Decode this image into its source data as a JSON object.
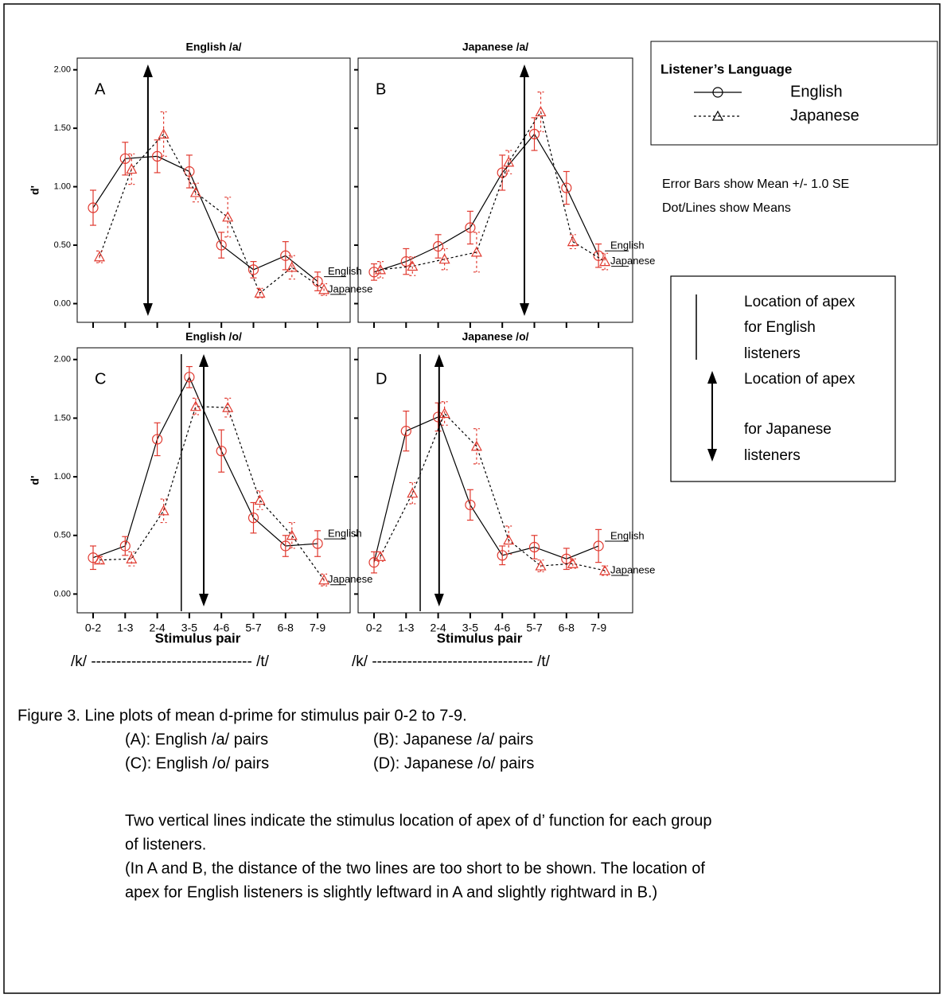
{
  "chart_data": [
    {
      "type": "line",
      "title": "English /a/",
      "letter": "A",
      "ylabel": "d'",
      "categories": [
        null,
        null,
        null,
        null,
        null,
        null,
        null,
        null
      ],
      "ylim": [
        -0.16,
        2.1
      ],
      "ytick_labels": true,
      "yticks": [
        {
          "value": 0,
          "label": "0.00"
        },
        {
          "value": 0.5,
          "label": "0.50"
        },
        {
          "value": 1,
          "label": "1.00"
        },
        {
          "value": 1.5,
          "label": "1.50"
        },
        {
          "value": 2,
          "label": "2.00"
        }
      ],
      "apex": {
        "japanese": 1.71
      },
      "series": [
        {
          "name": "English",
          "color": "#000000",
          "marker_color": "#e0392f",
          "marker": "circle",
          "dash": "solid",
          "values": [
            0.82,
            1.24,
            1.26,
            1.13,
            0.5,
            0.29,
            0.41,
            0.19
          ],
          "errors": [
            0.15,
            0.14,
            0.14,
            0.14,
            0.11,
            0.07,
            0.12,
            0.08
          ]
        },
        {
          "name": "Japanese",
          "color": "#000000",
          "marker_color": "#e0392f",
          "marker": "triangle",
          "dash": "dotted",
          "values": [
            0.4,
            1.15,
            1.45,
            0.95,
            0.74,
            0.09,
            0.31,
            0.12
          ],
          "errors": [
            0.05,
            0.13,
            0.19,
            0.08,
            0.17,
            0.04,
            0.1,
            0.05
          ]
        }
      ]
    },
    {
      "type": "line",
      "title": "Japanese /a/",
      "letter": "B",
      "categories": [
        null,
        null,
        null,
        null,
        null,
        null,
        null,
        null
      ],
      "ylim": [
        -0.16,
        2.1
      ],
      "ytick_labels": false,
      "yticks": [
        0,
        0.5,
        1,
        1.5,
        2
      ],
      "apex": {
        "japanese": 4.69
      },
      "series": [
        {
          "name": "English",
          "color": "#000000",
          "marker_color": "#e0392f",
          "marker": "circle",
          "dash": "solid",
          "values": [
            0.27,
            0.36,
            0.49,
            0.65,
            1.12,
            1.45,
            0.99,
            0.41
          ],
          "errors": [
            0.07,
            0.11,
            0.1,
            0.14,
            0.15,
            0.14,
            0.14,
            0.1
          ]
        },
        {
          "name": "Japanese",
          "color": "#000000",
          "marker_color": "#e0392f",
          "marker": "triangle",
          "dash": "dotted",
          "values": [
            0.29,
            0.32,
            0.38,
            0.44,
            1.21,
            1.64,
            0.53,
            0.36
          ],
          "errors": [
            0.07,
            0.08,
            0.09,
            0.17,
            0.1,
            0.17,
            0.06,
            0.07
          ]
        }
      ]
    },
    {
      "type": "line",
      "title": "English /o/",
      "letter": "C",
      "ylabel": "d'",
      "xlabel": "Stimulus pair",
      "continuum": "/k/ -------------------------------- /t/",
      "categories": [
        "0-2",
        "1-3",
        "2-4",
        "3-5",
        "4-6",
        "5-7",
        "6-8",
        "7-9"
      ],
      "ylim": [
        -0.16,
        2.1
      ],
      "ytick_labels": true,
      "yticks": [
        {
          "value": 0,
          "label": "0.00"
        },
        {
          "value": 0.5,
          "label": "0.50"
        },
        {
          "value": 1,
          "label": "1.00"
        },
        {
          "value": 1.5,
          "label": "1.50"
        },
        {
          "value": 2,
          "label": "2.00"
        }
      ],
      "apex": {
        "english": 2.75,
        "japanese": 3.45
      },
      "series": [
        {
          "name": "English",
          "color": "#000000",
          "marker_color": "#e0392f",
          "marker": "circle",
          "dash": "solid",
          "values": [
            0.31,
            0.41,
            1.32,
            1.85,
            1.22,
            0.65,
            0.41,
            0.43
          ],
          "errors": [
            0.1,
            0.08,
            0.14,
            0.09,
            0.18,
            0.13,
            0.09,
            0.11
          ]
        },
        {
          "name": "Japanese",
          "color": "#000000",
          "marker_color": "#e0392f",
          "marker": "triangle",
          "dash": "dotted",
          "values": [
            0.29,
            0.3,
            0.71,
            1.6,
            1.59,
            0.8,
            0.5,
            0.12
          ],
          "errors": [
            0.03,
            0.06,
            0.1,
            0.07,
            0.08,
            0.08,
            0.11,
            0.05
          ]
        }
      ]
    },
    {
      "type": "line",
      "title": "Japanese /o/",
      "letter": "D",
      "xlabel": "Stimulus pair",
      "continuum": "/k/ -------------------------------- /t/",
      "categories": [
        "0-2",
        "1-3",
        "2-4",
        "3-5",
        "4-6",
        "5-7",
        "6-8",
        "7-9"
      ],
      "ylim": [
        -0.16,
        2.1
      ],
      "ytick_labels": false,
      "yticks": [
        0,
        0.5,
        1,
        1.5,
        2
      ],
      "apex": {
        "english": 1.44,
        "japanese": 2.03
      },
      "series": [
        {
          "name": "English",
          "color": "#000000",
          "marker_color": "#e0392f",
          "marker": "circle",
          "dash": "solid",
          "values": [
            0.27,
            1.39,
            1.51,
            0.76,
            0.33,
            0.4,
            0.3,
            0.41
          ],
          "errors": [
            0.09,
            0.17,
            0.12,
            0.13,
            0.08,
            0.1,
            0.09,
            0.14
          ]
        },
        {
          "name": "Japanese",
          "color": "#000000",
          "marker_color": "#e0392f",
          "marker": "triangle",
          "dash": "dotted",
          "values": [
            0.32,
            0.86,
            1.54,
            1.26,
            0.46,
            0.24,
            0.26,
            0.2
          ],
          "errors": [
            0.04,
            0.09,
            0.1,
            0.15,
            0.12,
            0.05,
            0.04,
            0.04
          ]
        }
      ]
    }
  ],
  "legend": {
    "title": "Listener’s Language",
    "notes": [
      "Error Bars show Mean +/- 1.0 SE",
      "Dot/Lines show Means"
    ]
  },
  "apex_key": {
    "english": [
      "Location of apex",
      "for English",
      "listeners"
    ],
    "japanese": [
      "Location of apex",
      "for Japanese",
      "listeners"
    ]
  },
  "caption": {
    "title": "Figure 3.  Line plots of mean d-prime for stimulus pair 0-2 to 7-9.",
    "items": [
      [
        "(A): English /a/ pairs",
        "(B): Japanese /a/ pairs"
      ],
      [
        "(C): English /o/ pairs",
        "(D): Japanese /o/ pairs"
      ]
    ],
    "lines": [
      "Two vertical lines indicate the stimulus location of apex of d’ function for each group",
      "of listeners.",
      "(In A and B, the distance of the two lines are too short to be shown.  The location of",
      "apex for English listeners is slightly leftward in A and slightly rightward in B.)"
    ]
  }
}
